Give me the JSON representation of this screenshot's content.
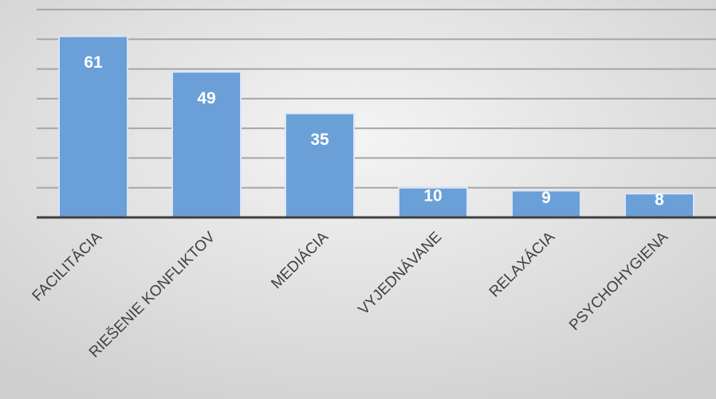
{
  "chart_data": {
    "type": "bar",
    "categories": [
      "FACILITÁCIA",
      "RIEŠENIE KONFLIKTOV",
      "MEDIÁCIA",
      "VYJEDNÁVANE",
      "RELAXÁCIA",
      "PSYCHOHYGIENA"
    ],
    "values": [
      61,
      49,
      35,
      10,
      9,
      8
    ],
    "color": "#6b9fd8",
    "ylim": [
      0,
      70
    ],
    "yticks": [
      0,
      10,
      20,
      30,
      40,
      50,
      60,
      70
    ],
    "grid": true
  }
}
